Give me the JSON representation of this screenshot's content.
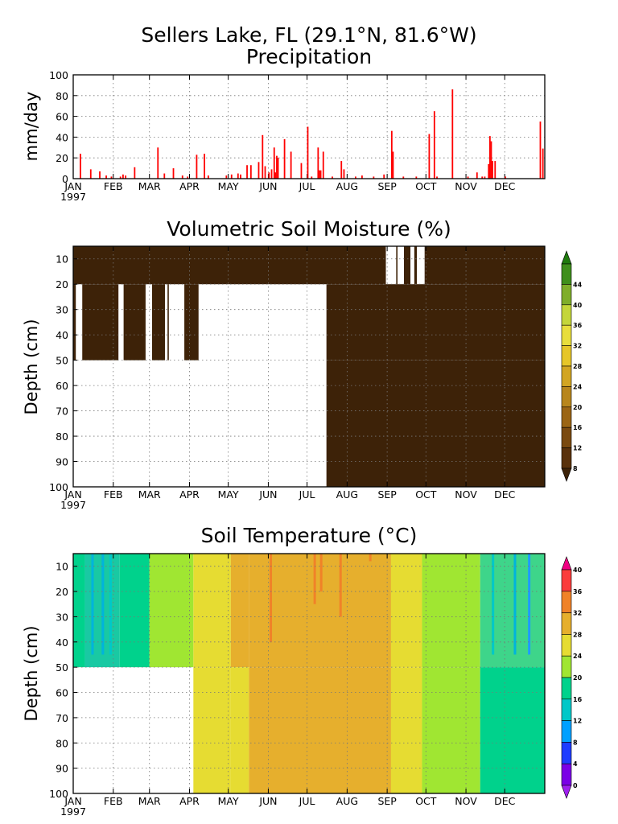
{
  "header": {
    "title": "Sellers Lake, FL (29.1°N, 81.6°W)",
    "subtitle": "Precipitation"
  },
  "months": [
    "JAN",
    "FEB",
    "MAR",
    "APR",
    "MAY",
    "JUN",
    "JUL",
    "AUG",
    "SEP",
    "OCT",
    "NOV",
    "DEC"
  ],
  "year_label": "1997",
  "colors": {
    "precip": "#ff0000",
    "moisture": "#3d2208",
    "missing": "#ffffff"
  },
  "chart_data": [
    {
      "type": "bar",
      "title": "Precipitation",
      "ylabel": "mm/day",
      "xlabel": "",
      "ylim": [
        0,
        100
      ],
      "yticks": [
        0,
        20,
        40,
        60,
        80,
        100
      ],
      "x_units": "day of year 1997",
      "points": [
        [
          5,
          24
        ],
        [
          13,
          9
        ],
        [
          20,
          7
        ],
        [
          25,
          3
        ],
        [
          29,
          2
        ],
        [
          36,
          2
        ],
        [
          38,
          4
        ],
        [
          40,
          3
        ],
        [
          47,
          11
        ],
        [
          65,
          30
        ],
        [
          70,
          5
        ],
        [
          77,
          10
        ],
        [
          84,
          3
        ],
        [
          88,
          2
        ],
        [
          95,
          23
        ],
        [
          101,
          24
        ],
        [
          104,
          3
        ],
        [
          118,
          3
        ],
        [
          122,
          4
        ],
        [
          127,
          5
        ],
        [
          129,
          4
        ],
        [
          134,
          13
        ],
        [
          137,
          13
        ],
        [
          143,
          16
        ],
        [
          146,
          42
        ],
        [
          148,
          12
        ],
        [
          151,
          6
        ],
        [
          153,
          9
        ],
        [
          155,
          30
        ],
        [
          156,
          6
        ],
        [
          157,
          22
        ],
        [
          158,
          20
        ],
        [
          163,
          38
        ],
        [
          168,
          26
        ],
        [
          176,
          15
        ],
        [
          181,
          50
        ],
        [
          184,
          2
        ],
        [
          189,
          30
        ],
        [
          190,
          8
        ],
        [
          191,
          8
        ],
        [
          193,
          26
        ],
        [
          200,
          2
        ],
        [
          207,
          17
        ],
        [
          209,
          9
        ],
        [
          218,
          2
        ],
        [
          223,
          3
        ],
        [
          232,
          2
        ],
        [
          240,
          4
        ],
        [
          246,
          46
        ],
        [
          247,
          26
        ],
        [
          255,
          2
        ],
        [
          265,
          2
        ],
        [
          275,
          43
        ],
        [
          279,
          65
        ],
        [
          281,
          2
        ],
        [
          293,
          86
        ],
        [
          305,
          2
        ],
        [
          312,
          6
        ],
        [
          316,
          2
        ],
        [
          318,
          2
        ],
        [
          321,
          14
        ],
        [
          322,
          41
        ],
        [
          323,
          36
        ],
        [
          324,
          17
        ],
        [
          326,
          17
        ],
        [
          334,
          2
        ],
        [
          361,
          55
        ],
        [
          363,
          29
        ]
      ]
    },
    {
      "type": "heatmap",
      "title": "Volumetric Soil Moisture (%)",
      "ylabel": "Depth (cm)",
      "xlabel": "",
      "ylim": [
        100,
        5
      ],
      "yticks": [
        10,
        20,
        30,
        40,
        50,
        60,
        70,
        80,
        90,
        100
      ],
      "colorbar_labels": [
        "8",
        "12",
        "16",
        "20",
        "24",
        "28",
        "32",
        "36",
        "40",
        "44"
      ],
      "colorbar_colors": [
        "#3d2208",
        "#5a320c",
        "#7a4a10",
        "#9b6514",
        "#b8861c",
        "#d2a522",
        "#e6c629",
        "#e8de3c",
        "#c4d63a",
        "#7fae2b",
        "#3f8f1c",
        "#1f7a0e"
      ],
      "value_range": "below 8",
      "layers": [
        {
          "depth_cm": [
            5,
            20
          ],
          "present_days": [
            [
              0,
              242
            ],
            [
              250,
              251
            ],
            [
              256,
              261
            ],
            [
              264,
              266
            ],
            [
              272,
              365
            ]
          ]
        },
        {
          "depth_cm": [
            20,
            50
          ],
          "present_days": [
            [
              0,
              2
            ],
            [
              7,
              35
            ],
            [
              39,
              56
            ],
            [
              61,
              71
            ],
            [
              73,
              74
            ],
            [
              86,
              97
            ],
            [
              196,
              365
            ]
          ]
        },
        {
          "depth_cm": [
            50,
            100
          ],
          "present_days": [
            [
              196,
              365
            ]
          ]
        }
      ]
    },
    {
      "type": "heatmap",
      "title": "Soil Temperature (°C)",
      "ylabel": "Depth (cm)",
      "xlabel": "",
      "ylim": [
        100,
        5
      ],
      "yticks": [
        10,
        20,
        30,
        40,
        50,
        60,
        70,
        80,
        90,
        100
      ],
      "colorbar_labels": [
        "0",
        "4",
        "8",
        "12",
        "16",
        "20",
        "24",
        "28",
        "32",
        "36",
        "40"
      ],
      "colorbar_colors": [
        "#a020f0",
        "#7a00e6",
        "#1e3cff",
        "#00a0ff",
        "#00c8c8",
        "#00d28c",
        "#a0e632",
        "#e6dc32",
        "#e6af2d",
        "#f08228",
        "#fa3c3c",
        "#f00082"
      ],
      "temperature_by_period": [
        {
          "days": [
            0,
            9
          ],
          "shallow": "16 to 20",
          "deep": "missing"
        },
        {
          "days": [
            9,
            36
          ],
          "shallow": "12 to 20",
          "deep": "missing"
        },
        {
          "days": [
            36,
            59
          ],
          "shallow": "16 to 20",
          "deep": "missing"
        },
        {
          "days": [
            59,
            93
          ],
          "shallow": "20 to 24",
          "deep": "missing"
        },
        {
          "days": [
            93,
            122
          ],
          "shallow": "24 to 28",
          "deep": "24 to 28"
        },
        {
          "days": [
            122,
            136
          ],
          "shallow": "28 to 32",
          "deep": "24 to 28"
        },
        {
          "days": [
            136,
            246
          ],
          "shallow": "28 to 32",
          "deep": "28 to 32"
        },
        {
          "days": [
            246,
            270
          ],
          "shallow": "24 to 28",
          "deep": "24 to 28"
        },
        {
          "days": [
            270,
            315
          ],
          "shallow": "20 to 24",
          "deep": "20 to 24"
        },
        {
          "days": [
            315,
            365
          ],
          "shallow": "16 to 24",
          "deep": "16 to 20"
        }
      ]
    }
  ]
}
